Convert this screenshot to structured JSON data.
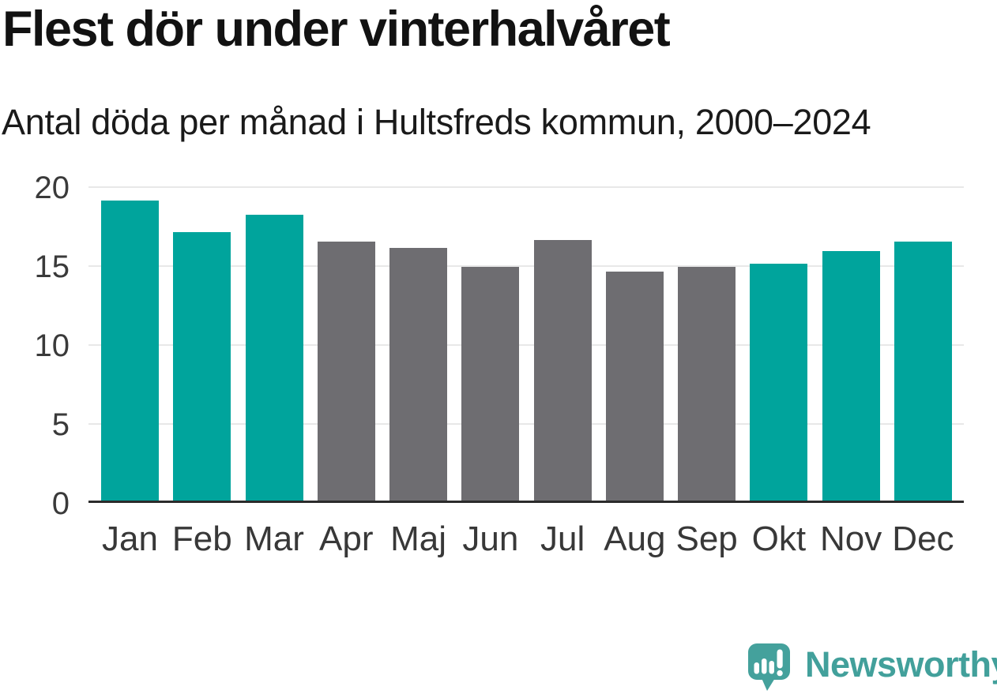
{
  "title": "Flest dör under vinterhalvåret",
  "subtitle": "Antal döda per månad i Hultsfreds kommun, 2000–2024",
  "chart_data": {
    "type": "bar",
    "title": "Flest dör under vinterhalvåret",
    "subtitle": "Antal döda per månad i Hultsfreds kommun, 2000–2024",
    "categories": [
      "Jan",
      "Feb",
      "Mar",
      "Apr",
      "Maj",
      "Jun",
      "Jul",
      "Aug",
      "Sep",
      "Okt",
      "Nov",
      "Dec"
    ],
    "values": [
      19.1,
      17.1,
      18.2,
      16.5,
      16.1,
      14.9,
      16.6,
      14.6,
      14.9,
      15.1,
      15.9,
      16.5
    ],
    "bar_color_keys": [
      "winter",
      "winter",
      "winter",
      "summer",
      "summer",
      "summer",
      "summer",
      "summer",
      "summer",
      "winter",
      "winter",
      "winter"
    ],
    "palette": {
      "winter": "#00a49c",
      "summer": "#6e6d71"
    },
    "xlabel": "",
    "ylabel": "",
    "ylim": [
      0,
      20
    ],
    "yticks": [
      0,
      5,
      10,
      15,
      20
    ],
    "grid": true,
    "legend": false,
    "gridline_color": "#e8e8e8",
    "axis_color": "#2b2b2b"
  },
  "branding": {
    "logo_text": "Newsworthy",
    "logo_color": "#42a09b",
    "logo_icon": "newsworthy-bubble-barchart-icon"
  }
}
